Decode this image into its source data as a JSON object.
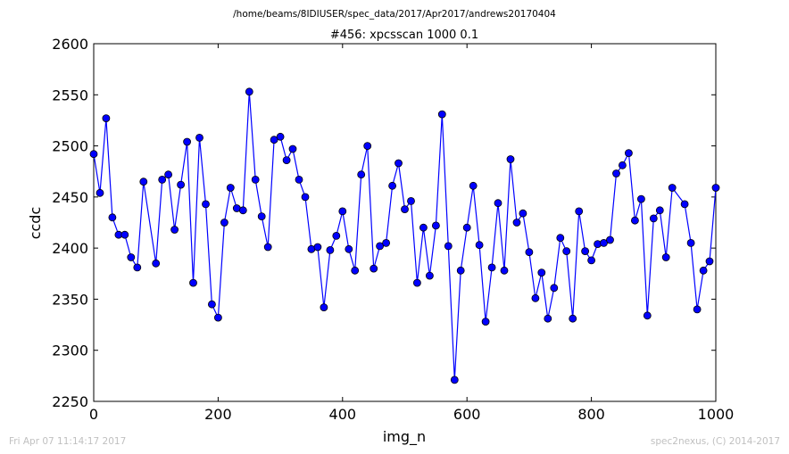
{
  "page": {
    "file_path": "/home/beams/8IDIUSER/spec_data/2017/Apr2017/andrews20170404",
    "timestamp": "Fri Apr 07 11:14:17 2017",
    "credit": "spec2nexus, (C) 2014-2017"
  },
  "chart_data": {
    "type": "line",
    "title": "#456: xpcsscan 1000 0.1",
    "xlabel": "img_n",
    "ylabel": "ccdc",
    "xlim": [
      0,
      1000
    ],
    "ylim": [
      2250,
      2600
    ],
    "xticks": [
      "0",
      "200",
      "400",
      "600",
      "800",
      "1000"
    ],
    "yticks": [
      "2250",
      "2300",
      "2350",
      "2400",
      "2450",
      "2500",
      "2550",
      "2600"
    ],
    "grid": false,
    "colors": {
      "line": "#0000ff",
      "marker": "#0000ff",
      "marker_edge": "#000000"
    },
    "series": [
      {
        "marker": "circle",
        "x": [
          0,
          10,
          20,
          30,
          40,
          50,
          60,
          70,
          80,
          100,
          110,
          120,
          130,
          140,
          150,
          160,
          170,
          180,
          190,
          200,
          210,
          220,
          230,
          240,
          250,
          260,
          270,
          280,
          290,
          300,
          310,
          320,
          330,
          340,
          350,
          360,
          370,
          380,
          390,
          400,
          410,
          420,
          430,
          440,
          450,
          460,
          470,
          480,
          490,
          500,
          510,
          520,
          530,
          540,
          550,
          560,
          570,
          580,
          590,
          600,
          610,
          620,
          630,
          640,
          650,
          660,
          670,
          680,
          690,
          700,
          710,
          720,
          730,
          740,
          750,
          760,
          770,
          780,
          790,
          800,
          810,
          820,
          830,
          840,
          850,
          860,
          870,
          880,
          890,
          900,
          910,
          920,
          930,
          950,
          960,
          970,
          980,
          990,
          1000
        ],
        "y": [
          2492,
          2454,
          2527,
          2430,
          2413,
          2413,
          2391,
          2381,
          2465,
          2385,
          2467,
          2472,
          2418,
          2462,
          2504,
          2366,
          2508,
          2443,
          2345,
          2332,
          2425,
          2459,
          2439,
          2437,
          2553,
          2467,
          2431,
          2401,
          2506,
          2509,
          2486,
          2497,
          2467,
          2450,
          2399,
          2401,
          2342,
          2398,
          2412,
          2436,
          2399,
          2378,
          2472,
          2500,
          2380,
          2402,
          2405,
          2461,
          2483,
          2438,
          2446,
          2366,
          2420,
          2373,
          2422,
          2531,
          2402,
          2271,
          2378,
          2420,
          2461,
          2403,
          2328,
          2381,
          2444,
          2378,
          2487,
          2425,
          2434,
          2396,
          2351,
          2376,
          2331,
          2361,
          2410,
          2397,
          2331,
          2436,
          2397,
          2388,
          2404,
          2405,
          2408,
          2473,
          2481,
          2493,
          2427,
          2448,
          2334,
          2429,
          2437,
          2391,
          2459,
          2443,
          2405,
          2340,
          2378,
          2387,
          2459
        ]
      }
    ]
  }
}
